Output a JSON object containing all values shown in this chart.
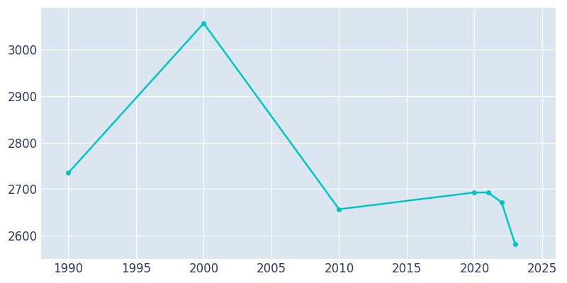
{
  "years": [
    1990,
    2000,
    2010,
    2020,
    2021,
    2022,
    2023
  ],
  "population": [
    2735,
    3057,
    2657,
    2693,
    2693,
    2672,
    2582
  ],
  "line_color": "#00C4C4",
  "plot_bg_color": "#DCE6F0",
  "fig_bg_color": "#FFFFFF",
  "grid_color": "#FFFFFF",
  "tick_label_color": "#2E3A5C",
  "xlim": [
    1988,
    2026
  ],
  "ylim": [
    2550,
    3090
  ],
  "xticks": [
    1990,
    1995,
    2000,
    2005,
    2010,
    2015,
    2020,
    2025
  ],
  "yticks": [
    2600,
    2700,
    2800,
    2900,
    3000
  ],
  "figsize": [
    8.0,
    4.0
  ],
  "dpi": 100,
  "marker": "o",
  "markersize": 4,
  "linewidth": 1.8,
  "tick_fontsize": 12
}
